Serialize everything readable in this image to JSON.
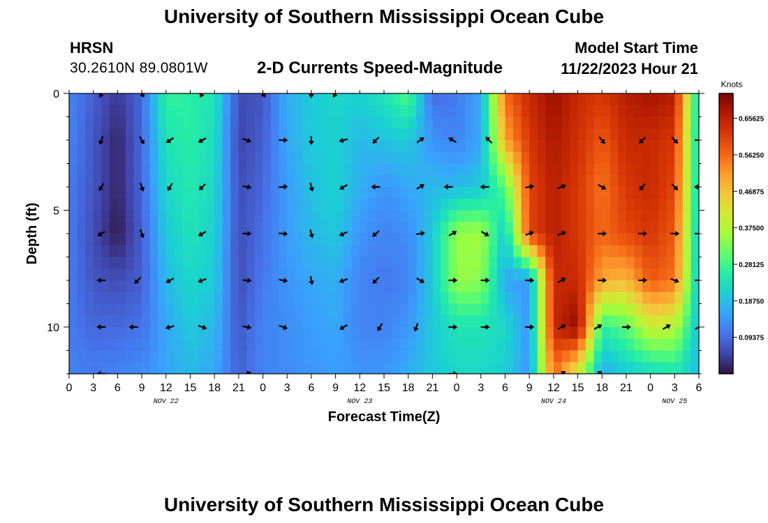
{
  "page": {
    "title": "University of Southern Mississippi Ocean Cube",
    "footer_title": "University of Southern Mississippi Ocean Cube",
    "station": "HRSN",
    "coords": "30.2610N  89.0801W",
    "subtitle": "2-D Currents Speed-Magnitude",
    "model_start_label": "Model Start Time",
    "model_start_time": "11/22/2023 Hour 21"
  },
  "colors": {
    "background": "#ffffff",
    "arrow": "#000000",
    "colormap": [
      "#30123b",
      "#4145ab",
      "#4675ed",
      "#39a2fc",
      "#1bcfd4",
      "#24eca6",
      "#61fc6c",
      "#a4fc3b",
      "#d1e834",
      "#f3c63a",
      "#fe9b2d",
      "#f36315",
      "#d93806",
      "#b11901",
      "#7a0402"
    ]
  },
  "chart_data": {
    "type": "heatmap",
    "title": "2-D Currents Speed-Magnitude",
    "xlabel": "Forecast Time(Z)",
    "ylabel": "Depth (ft)",
    "colorbar_label": "Knots",
    "x_range": [
      0,
      78
    ],
    "y_range": [
      0,
      12
    ],
    "value_range": [
      0,
      0.72
    ],
    "y_ticks": [
      {
        "v": 0,
        "label": "0"
      },
      {
        "v": 5,
        "label": "5"
      },
      {
        "v": 10,
        "label": "10"
      }
    ],
    "x_ticks": [
      {
        "v": 0,
        "label": "0"
      },
      {
        "v": 3,
        "label": "3"
      },
      {
        "v": 6,
        "label": "6"
      },
      {
        "v": 9,
        "label": "9"
      },
      {
        "v": 12,
        "label": "12"
      },
      {
        "v": 15,
        "label": "15"
      },
      {
        "v": 18,
        "label": "18"
      },
      {
        "v": 21,
        "label": "21"
      },
      {
        "v": 24,
        "label": "0"
      },
      {
        "v": 27,
        "label": "3"
      },
      {
        "v": 30,
        "label": "6"
      },
      {
        "v": 33,
        "label": "9"
      },
      {
        "v": 36,
        "label": "12"
      },
      {
        "v": 39,
        "label": "15"
      },
      {
        "v": 42,
        "label": "18"
      },
      {
        "v": 45,
        "label": "21"
      },
      {
        "v": 48,
        "label": "0"
      },
      {
        "v": 51,
        "label": "3"
      },
      {
        "v": 54,
        "label": "6"
      },
      {
        "v": 57,
        "label": "9"
      },
      {
        "v": 60,
        "label": "12"
      },
      {
        "v": 63,
        "label": "15"
      },
      {
        "v": 66,
        "label": "18"
      },
      {
        "v": 69,
        "label": "21"
      },
      {
        "v": 72,
        "label": "0"
      },
      {
        "v": 75,
        "label": "3"
      },
      {
        "v": 78,
        "label": "6"
      }
    ],
    "date_labels": [
      {
        "v": 12,
        "label": "NOV 22"
      },
      {
        "v": 36,
        "label": "NOV 23"
      },
      {
        "v": 60,
        "label": "NOV 24"
      },
      {
        "v": 75,
        "label": "NOV 25"
      }
    ],
    "colorbar_ticks": [
      {
        "v": 0.09375,
        "label": "0.09375"
      },
      {
        "v": 0.1875,
        "label": "0.18750"
      },
      {
        "v": 0.28125,
        "label": "0.28125"
      },
      {
        "v": 0.375,
        "label": "0.37500"
      },
      {
        "v": 0.46875,
        "label": "0.46875"
      },
      {
        "v": 0.5625,
        "label": "0.56250"
      },
      {
        "v": 0.65625,
        "label": "0.65625"
      }
    ],
    "depths_ft": [
      0,
      2,
      4,
      6,
      8,
      10,
      12
    ],
    "hours": [
      0,
      3,
      6,
      9,
      12,
      15,
      18,
      21,
      24,
      27,
      30,
      33,
      36,
      39,
      42,
      45,
      48,
      51,
      54,
      57,
      60,
      63,
      66,
      69,
      72,
      75,
      78
    ],
    "speed_knots": [
      [
        0.12,
        0.08,
        0.04,
        0.09,
        0.27,
        0.26,
        0.24,
        0.06,
        0.07,
        0.17,
        0.2,
        0.22,
        0.21,
        0.24,
        0.3,
        0.09,
        0.11,
        0.16,
        0.56,
        0.64,
        0.69,
        0.64,
        0.62,
        0.66,
        0.68,
        0.66,
        0.2
      ],
      [
        0.12,
        0.07,
        0.02,
        0.09,
        0.24,
        0.26,
        0.23,
        0.05,
        0.08,
        0.16,
        0.2,
        0.21,
        0.18,
        0.19,
        0.2,
        0.14,
        0.12,
        0.16,
        0.5,
        0.62,
        0.67,
        0.63,
        0.58,
        0.64,
        0.64,
        0.62,
        0.2
      ],
      [
        0.11,
        0.07,
        0.02,
        0.09,
        0.22,
        0.25,
        0.22,
        0.06,
        0.09,
        0.15,
        0.19,
        0.21,
        0.17,
        0.14,
        0.16,
        0.18,
        0.18,
        0.2,
        0.3,
        0.6,
        0.66,
        0.62,
        0.55,
        0.62,
        0.64,
        0.6,
        0.2
      ],
      [
        0.11,
        0.06,
        0.01,
        0.08,
        0.2,
        0.24,
        0.21,
        0.06,
        0.1,
        0.15,
        0.18,
        0.2,
        0.14,
        0.12,
        0.13,
        0.2,
        0.35,
        0.36,
        0.2,
        0.6,
        0.66,
        0.62,
        0.56,
        0.6,
        0.62,
        0.58,
        0.18
      ],
      [
        0.11,
        0.07,
        0.06,
        0.08,
        0.18,
        0.22,
        0.2,
        0.06,
        0.11,
        0.14,
        0.16,
        0.17,
        0.12,
        0.11,
        0.12,
        0.2,
        0.35,
        0.34,
        0.16,
        0.14,
        0.64,
        0.64,
        0.5,
        0.48,
        0.58,
        0.55,
        0.18
      ],
      [
        0.11,
        0.09,
        0.09,
        0.1,
        0.16,
        0.2,
        0.18,
        0.07,
        0.12,
        0.13,
        0.15,
        0.16,
        0.12,
        0.12,
        0.14,
        0.2,
        0.24,
        0.24,
        0.22,
        0.14,
        0.64,
        0.7,
        0.26,
        0.3,
        0.4,
        0.38,
        0.18
      ],
      [
        0.12,
        0.11,
        0.12,
        0.13,
        0.16,
        0.18,
        0.16,
        0.08,
        0.12,
        0.13,
        0.14,
        0.15,
        0.14,
        0.14,
        0.17,
        0.2,
        0.22,
        0.22,
        0.21,
        0.14,
        0.56,
        0.4,
        0.16,
        0.2,
        0.22,
        0.24,
        0.18
      ]
    ],
    "arrows": [
      {
        "hour": 4,
        "depth": 0,
        "dir": 200
      },
      {
        "hour": 9,
        "depth": 0,
        "dir": 150
      },
      {
        "hour": 16.5,
        "depth": 0,
        "dir": 210
      },
      {
        "hour": 24,
        "depth": 0,
        "dir": 150
      },
      {
        "hour": 30,
        "depth": 0,
        "dir": 180
      },
      {
        "hour": 33,
        "depth": 0,
        "dir": 210
      },
      {
        "hour": 4,
        "depth": 2,
        "dir": 200
      },
      {
        "hour": 9,
        "depth": 2,
        "dir": 150
      },
      {
        "hour": 12.5,
        "depth": 2,
        "dir": 235
      },
      {
        "hour": 16.5,
        "depth": 2,
        "dir": 240
      },
      {
        "hour": 22,
        "depth": 2,
        "dir": 110
      },
      {
        "hour": 26.5,
        "depth": 2,
        "dir": 90
      },
      {
        "hour": 30,
        "depth": 2,
        "dir": 180
      },
      {
        "hour": 34,
        "depth": 2,
        "dir": 255
      },
      {
        "hour": 38,
        "depth": 2,
        "dir": 225
      },
      {
        "hour": 43.5,
        "depth": 2,
        "dir": 55
      },
      {
        "hour": 47.5,
        "depth": 2,
        "dir": 300
      },
      {
        "hour": 52,
        "depth": 2,
        "dir": 315
      },
      {
        "hour": 66,
        "depth": 2,
        "dir": 140
      },
      {
        "hour": 71,
        "depth": 2,
        "dir": 225
      },
      {
        "hour": 75,
        "depth": 2,
        "dir": 135
      },
      {
        "hour": 78,
        "depth": 2,
        "dir": 90
      },
      {
        "hour": 4,
        "depth": 4,
        "dir": 210
      },
      {
        "hour": 9,
        "depth": 4,
        "dir": 160
      },
      {
        "hour": 12.5,
        "depth": 4,
        "dir": 210
      },
      {
        "hour": 16.5,
        "depth": 4,
        "dir": 225
      },
      {
        "hour": 22,
        "depth": 4,
        "dir": 100
      },
      {
        "hour": 26.5,
        "depth": 4,
        "dir": 85
      },
      {
        "hour": 30,
        "depth": 4,
        "dir": 165
      },
      {
        "hour": 34,
        "depth": 4,
        "dir": 240
      },
      {
        "hour": 38,
        "depth": 4,
        "dir": 270
      },
      {
        "hour": 43.5,
        "depth": 4,
        "dir": 60
      },
      {
        "hour": 47,
        "depth": 4,
        "dir": 270
      },
      {
        "hour": 51.5,
        "depth": 4,
        "dir": 270
      },
      {
        "hour": 57,
        "depth": 4,
        "dir": 80
      },
      {
        "hour": 61,
        "depth": 4,
        "dir": 70
      },
      {
        "hour": 66,
        "depth": 4,
        "dir": 120
      },
      {
        "hour": 71,
        "depth": 4,
        "dir": 220
      },
      {
        "hour": 75,
        "depth": 4,
        "dir": 135
      },
      {
        "hour": 78,
        "depth": 4,
        "dir": 270
      },
      {
        "hour": 4,
        "depth": 6,
        "dir": 240
      },
      {
        "hour": 9,
        "depth": 6,
        "dir": 160
      },
      {
        "hour": 16.5,
        "depth": 6,
        "dir": 240
      },
      {
        "hour": 22,
        "depth": 6,
        "dir": 90
      },
      {
        "hour": 26.5,
        "depth": 6,
        "dir": 95
      },
      {
        "hour": 30,
        "depth": 6,
        "dir": 165
      },
      {
        "hour": 34,
        "depth": 6,
        "dir": 245
      },
      {
        "hour": 38,
        "depth": 6,
        "dir": 230
      },
      {
        "hour": 43.5,
        "depth": 6,
        "dir": 80
      },
      {
        "hour": 47.5,
        "depth": 6,
        "dir": 60
      },
      {
        "hour": 51.5,
        "depth": 6,
        "dir": 120
      },
      {
        "hour": 57,
        "depth": 6,
        "dir": 70
      },
      {
        "hour": 61,
        "depth": 6,
        "dir": 70
      },
      {
        "hour": 66,
        "depth": 6,
        "dir": 90
      },
      {
        "hour": 71,
        "depth": 6,
        "dir": 90
      },
      {
        "hour": 75,
        "depth": 6,
        "dir": 90
      },
      {
        "hour": 78,
        "depth": 6,
        "dir": 90
      },
      {
        "hour": 4,
        "depth": 8,
        "dir": 270
      },
      {
        "hour": 8.5,
        "depth": 8,
        "dir": 225
      },
      {
        "hour": 12.5,
        "depth": 8,
        "dir": 240
      },
      {
        "hour": 16.5,
        "depth": 8,
        "dir": 250
      },
      {
        "hour": 22,
        "depth": 8,
        "dir": 95
      },
      {
        "hour": 26.5,
        "depth": 8,
        "dir": 100
      },
      {
        "hour": 30,
        "depth": 8,
        "dir": 170
      },
      {
        "hour": 34,
        "depth": 8,
        "dir": 250
      },
      {
        "hour": 38,
        "depth": 8,
        "dir": 225
      },
      {
        "hour": 43.5,
        "depth": 8,
        "dir": 120
      },
      {
        "hour": 47.5,
        "depth": 8,
        "dir": 90
      },
      {
        "hour": 51.5,
        "depth": 8,
        "dir": 90
      },
      {
        "hour": 57,
        "depth": 8,
        "dir": 90
      },
      {
        "hour": 61,
        "depth": 8,
        "dir": 60
      },
      {
        "hour": 66,
        "depth": 8,
        "dir": 90
      },
      {
        "hour": 71,
        "depth": 8,
        "dir": 90
      },
      {
        "hour": 75,
        "depth": 8,
        "dir": 110
      },
      {
        "hour": 78,
        "depth": 8,
        "dir": 90
      },
      {
        "hour": 4,
        "depth": 10,
        "dir": 270
      },
      {
        "hour": 8,
        "depth": 10,
        "dir": 270
      },
      {
        "hour": 12.5,
        "depth": 10,
        "dir": 255
      },
      {
        "hour": 16.5,
        "depth": 10,
        "dir": 110
      },
      {
        "hour": 22,
        "depth": 10,
        "dir": 100
      },
      {
        "hour": 26.5,
        "depth": 10,
        "dir": 110
      },
      {
        "hour": 34,
        "depth": 10,
        "dir": 240
      },
      {
        "hour": 38.5,
        "depth": 10,
        "dir": 210
      },
      {
        "hour": 43,
        "depth": 10,
        "dir": 200
      },
      {
        "hour": 47.5,
        "depth": 10,
        "dir": 90
      },
      {
        "hour": 51.5,
        "depth": 10,
        "dir": 90
      },
      {
        "hour": 57,
        "depth": 10,
        "dir": 90
      },
      {
        "hour": 61,
        "depth": 10,
        "dir": 60
      },
      {
        "hour": 65.5,
        "depth": 10,
        "dir": 60
      },
      {
        "hour": 69,
        "depth": 10,
        "dir": 90
      },
      {
        "hour": 74,
        "depth": 10,
        "dir": 60
      },
      {
        "hour": 78,
        "depth": 10,
        "dir": 60
      },
      {
        "hour": 4,
        "depth": 12,
        "dir": 270
      },
      {
        "hour": 22,
        "depth": 12,
        "dir": 70
      },
      {
        "hour": 47.5,
        "depth": 12,
        "dir": 90
      },
      {
        "hour": 61,
        "depth": 12,
        "dir": 60
      },
      {
        "hour": 65.5,
        "depth": 12,
        "dir": 60
      }
    ]
  }
}
